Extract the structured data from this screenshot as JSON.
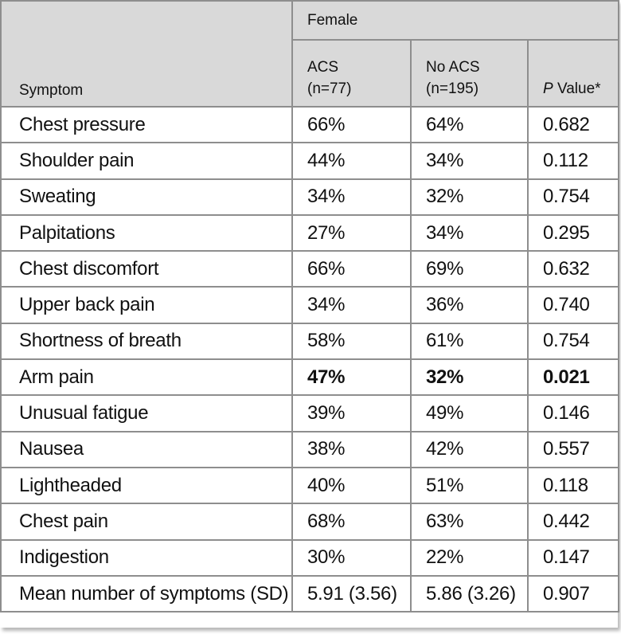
{
  "table": {
    "group_header": "Female",
    "col_symptom": "Symptom",
    "col_acs_line1": "ACS",
    "col_acs_line2": "(n=77)",
    "col_noacs_line1": "No ACS",
    "col_noacs_line2": "(n=195)",
    "col_p_italic": "P",
    "col_p_rest": " Value*",
    "rows": [
      {
        "symptom": "Chest pressure",
        "acs": "66%",
        "no_acs": "64%",
        "p": "0.682"
      },
      {
        "symptom": "Shoulder pain",
        "acs": "44%",
        "no_acs": "34%",
        "p": "0.112"
      },
      {
        "symptom": "Sweating",
        "acs": "34%",
        "no_acs": "32%",
        "p": "0.754"
      },
      {
        "symptom": "Palpitations",
        "acs": "27%",
        "no_acs": "34%",
        "p": "0.295"
      },
      {
        "symptom": "Chest discomfort",
        "acs": "66%",
        "no_acs": "69%",
        "p": "0.632"
      },
      {
        "symptom": "Upper back pain",
        "acs": "34%",
        "no_acs": "36%",
        "p": "0.740"
      },
      {
        "symptom": "Shortness of breath",
        "acs": "58%",
        "no_acs": "61%",
        "p": "0.754"
      },
      {
        "symptom": "Arm pain",
        "acs": "47%",
        "no_acs": "32%",
        "p": "0.021"
      },
      {
        "symptom": "Unusual fatigue",
        "acs": "39%",
        "no_acs": "49%",
        "p": "0.146"
      },
      {
        "symptom": "Nausea",
        "acs": "38%",
        "no_acs": "42%",
        "p": "0.557"
      },
      {
        "symptom": "Lightheaded",
        "acs": "40%",
        "no_acs": "51%",
        "p": "0.118"
      },
      {
        "symptom": "Chest pain",
        "acs": "68%",
        "no_acs": "63%",
        "p": "0.442"
      },
      {
        "symptom": "Indigestion",
        "acs": "30%",
        "no_acs": "22%",
        "p": "0.147"
      },
      {
        "symptom": "Mean number of symptoms (SD)",
        "acs": "5.91 (3.56)",
        "no_acs": "5.86 (3.26)",
        "p": "0.907"
      }
    ]
  }
}
